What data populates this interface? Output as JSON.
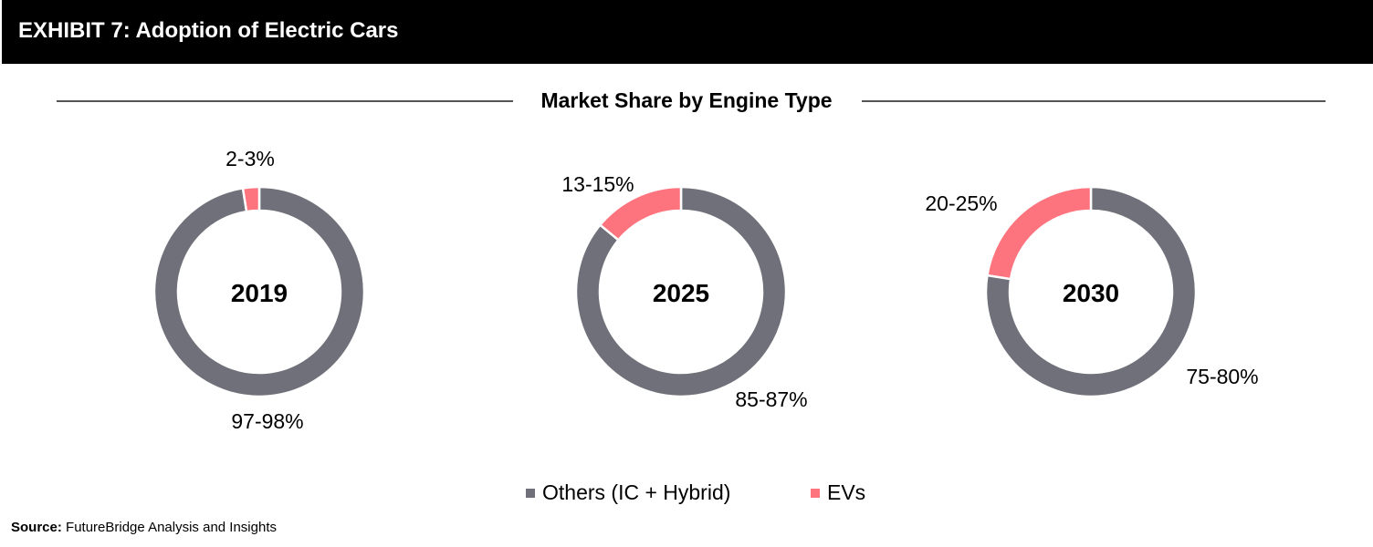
{
  "header": {
    "title": "EXHIBIT 7: Adoption of Electric Cars"
  },
  "subtitle": "Market Share by Engine Type",
  "colors": {
    "others": "#6f7079",
    "evs": "#fd747e"
  },
  "chart_data": [
    {
      "type": "pie",
      "center_label": "2019",
      "slices": [
        {
          "name": "Others (IC + Hybrid)",
          "value": 97.5,
          "label": "97-98%"
        },
        {
          "name": "EVs",
          "value": 2.5,
          "label": "2-3%"
        }
      ]
    },
    {
      "type": "pie",
      "center_label": "2025",
      "slices": [
        {
          "name": "Others (IC + Hybrid)",
          "value": 86,
          "label": "85-87%"
        },
        {
          "name": "EVs",
          "value": 14,
          "label": "13-15%"
        }
      ]
    },
    {
      "type": "pie",
      "center_label": "2030",
      "slices": [
        {
          "name": "Others (IC + Hybrid)",
          "value": 77.5,
          "label": "75-80%"
        },
        {
          "name": "EVs",
          "value": 22.5,
          "label": "20-25%"
        }
      ]
    }
  ],
  "legend": {
    "others": "Others (IC + Hybrid)",
    "evs": "EVs"
  },
  "source": {
    "label": "Source:",
    "text": " FutureBridge Analysis and Insights"
  }
}
